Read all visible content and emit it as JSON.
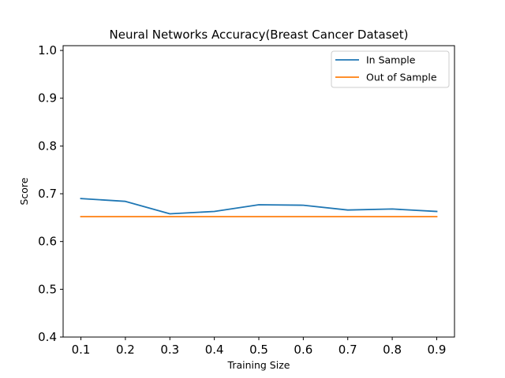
{
  "chart_data": {
    "type": "line",
    "title": "Neural Networks Accuracy(Breast Cancer Dataset)",
    "xlabel": "Training Size",
    "ylabel": "Score",
    "x": [
      0.1,
      0.2,
      0.3,
      0.4,
      0.5,
      0.6,
      0.7,
      0.8,
      0.9
    ],
    "x_ticks": [
      "0.1",
      "0.2",
      "0.3",
      "0.4",
      "0.5",
      "0.6",
      "0.7",
      "0.8",
      "0.9"
    ],
    "xlim": [
      0.06,
      0.94
    ],
    "ylim": [
      0.4,
      1.01
    ],
    "y_ticks": [
      {
        "value": 0.4,
        "label": "0.4"
      },
      {
        "value": 0.5,
        "label": "0.5"
      },
      {
        "value": 0.6,
        "label": "0.6"
      },
      {
        "value": 0.7,
        "label": "0.7"
      },
      {
        "value": 0.8,
        "label": "0.8"
      },
      {
        "value": 0.9,
        "label": "0.9"
      },
      {
        "value": 1.0,
        "label": "1.0"
      }
    ],
    "grid": false,
    "legend_position": "top-right",
    "series": [
      {
        "name": "In Sample",
        "color": "#1f77b4",
        "values": [
          0.69,
          0.684,
          0.658,
          0.663,
          0.677,
          0.676,
          0.666,
          0.668,
          0.663
        ]
      },
      {
        "name": "Out of Sample",
        "color": "#ff7f0e",
        "values": [
          0.652,
          0.652,
          0.652,
          0.652,
          0.652,
          0.652,
          0.652,
          0.652,
          0.652
        ]
      }
    ]
  }
}
